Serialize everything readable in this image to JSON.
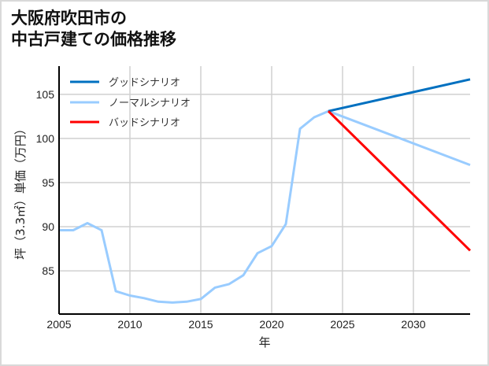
{
  "title_line1": "大阪府吹田市の",
  "title_line2": "中古戸建ての価格推移",
  "chart_data": {
    "type": "line",
    "title": "大阪府吹田市の中古戸建ての価格推移",
    "xlabel": "年",
    "ylabel": "坪（3.3㎡）単価（万円）",
    "xlim": [
      2005,
      2034
    ],
    "ylim": [
      80.1,
      108.2
    ],
    "xticks": [
      2005,
      2010,
      2015,
      2020,
      2025,
      2030
    ],
    "yticks": [
      85,
      90,
      95,
      100,
      105
    ],
    "grid": true,
    "legend_position": "upper left",
    "series": [
      {
        "name": "グッドシナリオ",
        "color": "#0070c0",
        "x": [
          2024,
          2034
        ],
        "values": [
          103.1,
          106.7
        ]
      },
      {
        "name": "ノーマルシナリオ",
        "color": "#99ccff",
        "x": [
          2005,
          2006,
          2007,
          2008,
          2009,
          2010,
          2011,
          2012,
          2013,
          2014,
          2015,
          2016,
          2017,
          2018,
          2019,
          2020,
          2021,
          2022,
          2023,
          2024,
          2034
        ],
        "values": [
          89.6,
          89.6,
          90.4,
          89.6,
          82.7,
          82.2,
          81.9,
          81.5,
          81.4,
          81.5,
          81.8,
          83.1,
          83.5,
          84.5,
          87.0,
          87.8,
          90.3,
          101.1,
          102.4,
          103.1,
          97.0
        ]
      },
      {
        "name": "バッドシナリオ",
        "color": "#ff0000",
        "x": [
          2024,
          2034
        ],
        "values": [
          103.1,
          87.3
        ]
      }
    ]
  },
  "legend": {
    "good": "グッドシナリオ",
    "normal": "ノーマルシナリオ",
    "bad": "バッドシナリオ"
  },
  "axes": {
    "xlabel": "年",
    "ylabel": "坪（3.3㎡）単価（万円）"
  }
}
